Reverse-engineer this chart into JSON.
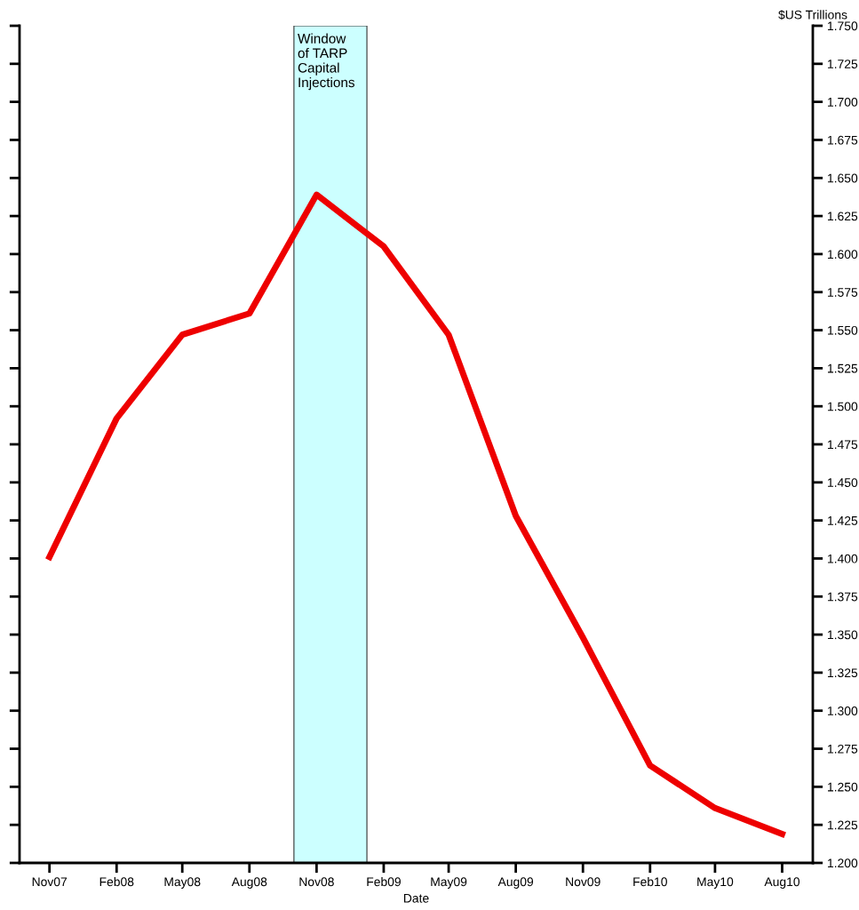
{
  "chart_data": {
    "type": "line",
    "x": [
      "2007-11",
      "2008-02",
      "2008-05",
      "2008-08",
      "2008-11",
      "2009-02",
      "2009-05",
      "2009-08",
      "2009-11",
      "2010-02",
      "2010-05",
      "2010-08"
    ],
    "series": [
      {
        "color": "#ee0000",
        "values": [
          1.401,
          1.492,
          1.547,
          1.561,
          1.639,
          1.605,
          1.547,
          1.428,
          1.348,
          1.264,
          1.236,
          1.219
        ]
      }
    ],
    "xlabel": "Date",
    "ylabel": "$US Trillions",
    "xlim": [
      "2007-09-21",
      "2010-09-12"
    ],
    "xticks": [
      {
        "value": "2007-11",
        "label": "Nov07"
      },
      {
        "value": "2008-02",
        "label": "Feb08"
      },
      {
        "value": "2008-05",
        "label": "May08"
      },
      {
        "value": "2008-08",
        "label": "Aug08"
      },
      {
        "value": "2008-11",
        "label": "Nov08"
      },
      {
        "value": "2009-02",
        "label": "Feb09"
      },
      {
        "value": "2009-05",
        "label": "May09"
      },
      {
        "value": "2009-08",
        "label": "Aug09"
      },
      {
        "value": "2009-11",
        "label": "Nov09"
      },
      {
        "value": "2010-02",
        "label": "Feb10"
      },
      {
        "value": "2010-05",
        "label": "May10"
      },
      {
        "value": "2010-08",
        "label": "Aug10"
      }
    ],
    "ylim": [
      1.2,
      1.75
    ],
    "yticks": [
      {
        "value": 1.2,
        "label": "1.200"
      },
      {
        "value": 1.225,
        "label": "1.225"
      },
      {
        "value": 1.25,
        "label": "1.250"
      },
      {
        "value": 1.275,
        "label": "1.275"
      },
      {
        "value": 1.3,
        "label": "1.300"
      },
      {
        "value": 1.325,
        "label": "1.325"
      },
      {
        "value": 1.35,
        "label": "1.350"
      },
      {
        "value": 1.375,
        "label": "1.375"
      },
      {
        "value": 1.4,
        "label": "1.400"
      },
      {
        "value": 1.425,
        "label": "1.425"
      },
      {
        "value": 1.45,
        "label": "1.450"
      },
      {
        "value": 1.475,
        "label": "1.475"
      },
      {
        "value": 1.5,
        "label": "1.500"
      },
      {
        "value": 1.525,
        "label": "1.525"
      },
      {
        "value": 1.55,
        "label": "1.550"
      },
      {
        "value": 1.575,
        "label": "1.575"
      },
      {
        "value": 1.6,
        "label": "1.600"
      },
      {
        "value": 1.625,
        "label": "1.625"
      },
      {
        "value": 1.65,
        "label": "1.650"
      },
      {
        "value": 1.675,
        "label": "1.675"
      },
      {
        "value": 1.7,
        "label": "1.700"
      },
      {
        "value": 1.725,
        "label": "1.725"
      },
      {
        "value": 1.75,
        "label": "1.750"
      }
    ],
    "bands": [
      {
        "axis": "x",
        "from": "2008-10-01",
        "to": "2009-01-09",
        "label": "Window\nof TARP\nCapital\nInjections",
        "color": "#ccffff"
      }
    ],
    "grid": false,
    "legend": false,
    "line_style": "solid",
    "marker": "none"
  }
}
